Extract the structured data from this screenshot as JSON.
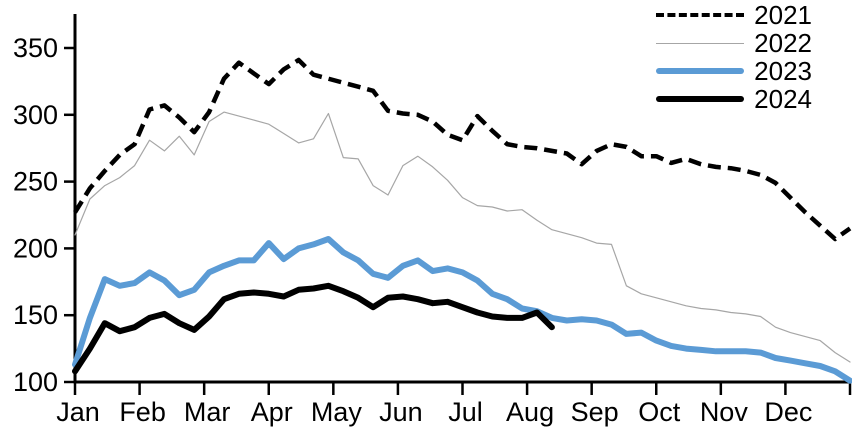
{
  "chart_data": {
    "type": "line",
    "title": "",
    "xlabel": "",
    "ylabel": "",
    "grid": false,
    "legend_position": "top-right",
    "weeks": 52,
    "x_axis": {
      "tick_labels": [
        "Jan",
        "Feb",
        "Mar",
        "Apr",
        "May",
        "Jun",
        "Jul",
        "Aug",
        "Sep",
        "Oct",
        "Nov",
        "Dec"
      ]
    },
    "y_axis": {
      "ticks": [
        100,
        150,
        200,
        250,
        300,
        350
      ],
      "range": [
        100,
        375
      ]
    },
    "colors": {
      "axis": "#000000",
      "accent_blue": "#5b9bd5",
      "thin_gray": "#a6a6a6"
    },
    "series": [
      {
        "name": "2021",
        "color": "#000000",
        "style": "dashed",
        "width": 4.5,
        "values": [
          227,
          245,
          258,
          270,
          278,
          304,
          307,
          298,
          287,
          302,
          327,
          339,
          331,
          323,
          334,
          341,
          330,
          327,
          324,
          321,
          318,
          303,
          301,
          300,
          295,
          285,
          281,
          299,
          288,
          278,
          276,
          275,
          273,
          271,
          263,
          273,
          278,
          276,
          269,
          269,
          264,
          267,
          263,
          261,
          260,
          258,
          255,
          249,
          238,
          227,
          217,
          207,
          215
        ]
      },
      {
        "name": "2022",
        "color": "#a6a6a6",
        "style": "solid",
        "width": 1.2,
        "values": [
          210,
          237,
          247,
          253,
          262,
          281,
          273,
          284,
          270,
          295,
          302,
          299,
          296,
          293,
          286,
          279,
          282,
          301,
          268,
          267,
          247,
          240,
          262,
          269,
          261,
          251,
          238,
          232,
          231,
          228,
          229,
          221,
          214,
          211,
          208,
          204,
          203,
          172,
          166,
          163,
          160,
          157,
          155,
          154,
          152,
          151,
          149,
          141,
          137,
          134,
          131,
          122,
          115
        ]
      },
      {
        "name": "2023",
        "color": "#5b9bd5",
        "style": "solid",
        "width": 6,
        "values": [
          113,
          148,
          177,
          172,
          174,
          182,
          176,
          165,
          169,
          182,
          187,
          191,
          191,
          204,
          192,
          200,
          203,
          207,
          197,
          191,
          181,
          178,
          187,
          191,
          183,
          185,
          182,
          176,
          166,
          162,
          155,
          153,
          148,
          146,
          147,
          146,
          143,
          136,
          137,
          131,
          127,
          125,
          124,
          123,
          123,
          123,
          122,
          118,
          116,
          114,
          112,
          108,
          101
        ]
      },
      {
        "name": "2024",
        "color": "#000000",
        "style": "solid",
        "width": 6,
        "values": [
          108,
          125,
          144,
          138,
          141,
          148,
          151,
          144,
          139,
          149,
          162,
          166,
          167,
          166,
          164,
          169,
          170,
          172,
          168,
          163,
          156,
          163,
          164,
          162,
          159,
          160,
          156,
          152,
          149,
          148,
          148,
          152,
          141
        ]
      }
    ]
  }
}
